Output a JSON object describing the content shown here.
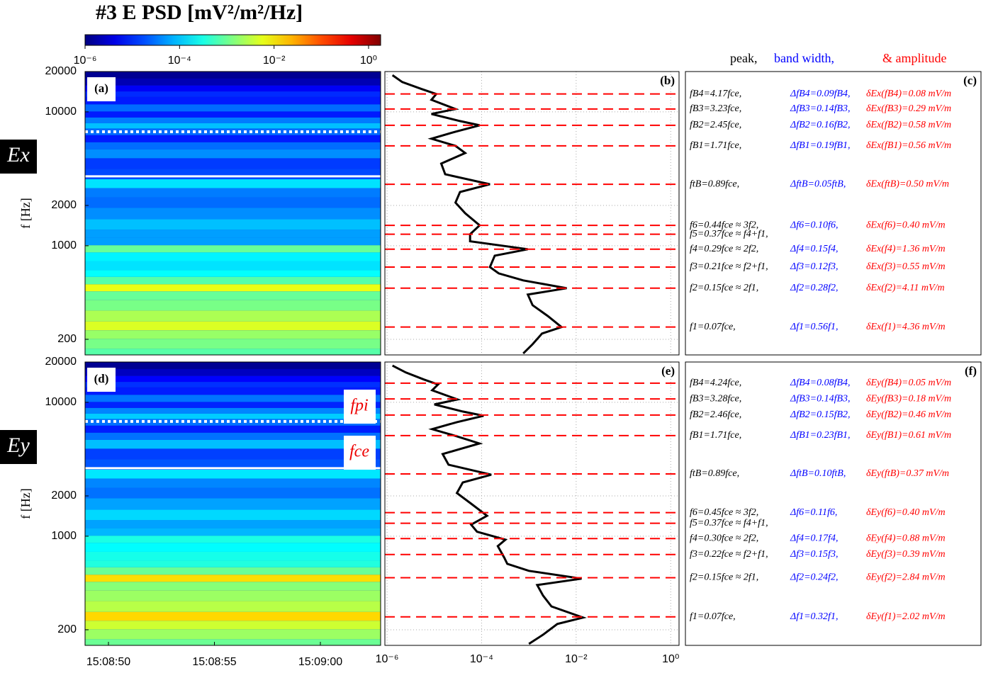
{
  "title": "#3 E PSD [mV²/m²/Hz]",
  "colorbar": {
    "clim": [
      1e-06,
      1.8
    ],
    "ticks": [
      {
        "value": 1e-06,
        "label": "10⁻⁶"
      },
      {
        "value": 0.0001,
        "label": "10⁻⁴"
      },
      {
        "value": 0.01,
        "label": "10⁻²"
      },
      {
        "value": 1,
        "label": "10⁰"
      }
    ]
  },
  "columns": [
    "peak,",
    "band width,",
    "& amplitude"
  ],
  "rows": [
    {
      "component": "Ex",
      "spectrogram": {
        "label": "(a)",
        "ylabel": "f [Hz]",
        "ylim": [
          153,
          20000
        ],
        "yticks": [
          200,
          1000,
          2000,
          10000,
          20000
        ],
        "fce": 3300,
        "fpi": 7100
      },
      "profile": {
        "label": "(b)",
        "xlim": [
          9e-07,
          1.5
        ],
        "f": [
          18800,
          16700,
          14800,
          13600,
          12300,
          10500,
          9640,
          8530,
          7930,
          7110,
          6300,
          5570,
          4930,
          4110,
          3420,
          2880,
          2520,
          2100,
          1750,
          1420,
          1220,
          1080,
          942,
          843,
          693,
          622,
          551,
          482,
          432,
          360,
          299,
          247,
          221,
          184,
          157
        ],
        "psd": [
          1.3e-06,
          2.1e-06,
          5.4e-06,
          1.1e-05,
          8.7e-06,
          2.8e-05,
          8.7e-06,
          3.5e-05,
          9.1e-05,
          2.8e-05,
          8.7e-06,
          2.8e-05,
          4.5e-05,
          1.4e-05,
          1.7e-05,
          0.00015,
          3.5e-05,
          2.8e-05,
          4.5e-05,
          9.1e-05,
          5.7e-05,
          5.7e-05,
          0.00095,
          0.00019,
          0.00015,
          0.00023,
          0.00076,
          0.0063,
          0.00095,
          0.0012,
          0.0025,
          0.0049,
          0.0019,
          0.0012,
          0.00076
        ],
        "peaks": [
          13600,
          10500,
          7930,
          5570,
          2880,
          1420,
          1220,
          942,
          693,
          482,
          247
        ]
      },
      "table": {
        "label": "(c)",
        "rows": [
          [
            "fB4=4.17fce,",
            "ΔfB4=0.09fB4,",
            "δEx(fB4)=0.08 mV/m"
          ],
          [
            "fB3=3.23fce,",
            "ΔfB3=0.14fB3,",
            "δEx(fB3)=0.29 mV/m"
          ],
          [
            "fB2=2.45fce,",
            "ΔfB2=0.16fB2,",
            "δEx(fB2)=0.58 mV/m"
          ],
          [
            "fB1=1.71fce,",
            "ΔfB1=0.19fB1,",
            "δEx(fB1)=0.56 mV/m"
          ],
          [
            "ftB=0.89fce,",
            "ΔftB=0.05ftB,",
            "δEx(ftB)=0.50 mV/m"
          ],
          [
            "f6=0.44fce ≈ 3f2,",
            "Δf6=0.10f6,",
            "δEx(f6)=0.40 mV/m"
          ],
          [
            "f5=0.37fce ≈ f4+f1,"
          ],
          [
            "f4=0.29fce ≈ 2f2,",
            "Δf4=0.15f4,",
            "δEx(f4)=1.36 mV/m"
          ],
          [
            "f3=0.21fce ≈ f2+f1,",
            "Δf3=0.12f3,",
            "δEx(f3)=0.55 mV/m"
          ],
          [
            "f2=0.15fce ≈ 2f1,",
            "Δf2=0.28f2,",
            "δEx(f2)=4.11 mV/m"
          ],
          [
            "f1=0.07fce,",
            "Δf1=0.56f1,",
            "δEx(f1)=4.36 mV/m"
          ]
        ]
      }
    },
    {
      "component": "Ey",
      "spectrogram": {
        "label": "(d)",
        "ylabel": "f [Hz]",
        "ylim": [
          153,
          20000
        ],
        "yticks": [
          200,
          1000,
          2000,
          10000,
          20000
        ],
        "fce": 3220,
        "fpi": 7200,
        "fpi_label": "fpi",
        "fce_label": "fce",
        "time_ticks": [
          "15:08:50",
          "15:08:55",
          "15:09:00"
        ]
      },
      "profile": {
        "label": "(e)",
        "xlim": [
          9e-07,
          1.5
        ],
        "xticks": [
          {
            "value": 1e-06,
            "label": "10⁻⁶"
          },
          {
            "value": 0.0001,
            "label": "10⁻⁴"
          },
          {
            "value": 0.01,
            "label": "10⁻²"
          },
          {
            "value": 1,
            "label": "10⁰"
          }
        ],
        "f": [
          18800,
          16700,
          14800,
          13600,
          12300,
          10500,
          9640,
          8530,
          7930,
          7110,
          6300,
          5570,
          4930,
          4110,
          3420,
          2880,
          2520,
          2100,
          1750,
          1420,
          1220,
          1080,
          942,
          843,
          693,
          622,
          551,
          482,
          432,
          360,
          299,
          247,
          221,
          184,
          157
        ],
        "psd": [
          1.3e-06,
          2.5e-06,
          6e-06,
          1.2e-05,
          9e-06,
          3.1e-05,
          1e-05,
          4e-05,
          0.00011,
          3e-05,
          9e-06,
          3e-05,
          9e-05,
          1.5e-05,
          2e-05,
          0.00016,
          4e-05,
          3e-05,
          6e-05,
          0.00013,
          6e-05,
          8e-05,
          0.00032,
          0.00022,
          0.0003,
          0.00035,
          0.001,
          0.013,
          0.0015,
          0.002,
          0.003,
          0.014,
          0.004,
          0.002,
          0.001
        ],
        "peaks": [
          13900,
          10600,
          8030,
          5640,
          2920,
          1500,
          1250,
          960,
          730,
          490,
          250
        ]
      },
      "table": {
        "label": "(f)",
        "rows": [
          [
            "fB4=4.24fce,",
            "ΔfB4=0.08fB4,",
            "δEy(fB4)=0.05 mV/m"
          ],
          [
            "fB3=3.28fce,",
            "ΔfB3=0.14fB3,",
            "δEy(fB3)=0.18 mV/m"
          ],
          [
            "fB2=2.46fce,",
            "ΔfB2=0.15fB2,",
            "δEy(fB2)=0.46 mV/m"
          ],
          [
            "fB1=1.71fce,",
            "ΔfB1=0.23fB1,",
            "δEy(fB1)=0.61 mV/m"
          ],
          [
            "ftB=0.89fce,",
            "ΔftB=0.10ftB,",
            "δEy(ftB)=0.37 mV/m"
          ],
          [
            "f6=0.45fce ≈ 3f2,",
            "Δf6=0.11f6,",
            "δEy(f6)=0.40 mV/m"
          ],
          [
            "f5=0.37fce ≈ f4+f1,"
          ],
          [
            "f4=0.30fce ≈ 2f2,",
            "Δf4=0.17f4,",
            "δEy(f4)=0.88 mV/m"
          ],
          [
            "f3=0.22fce ≈ f2+f1,",
            "Δf3=0.15f3,",
            "δEy(f3)=0.39 mV/m"
          ],
          [
            "f2=0.15fce ≈ 2f1,",
            "Δf2=0.24f2,",
            "δEy(f2)=2.84 mV/m"
          ],
          [
            "f1=0.07fce,",
            "Δf1=0.32f1,",
            "δEy(f1)=2.02 mV/m"
          ]
        ]
      }
    }
  ]
}
